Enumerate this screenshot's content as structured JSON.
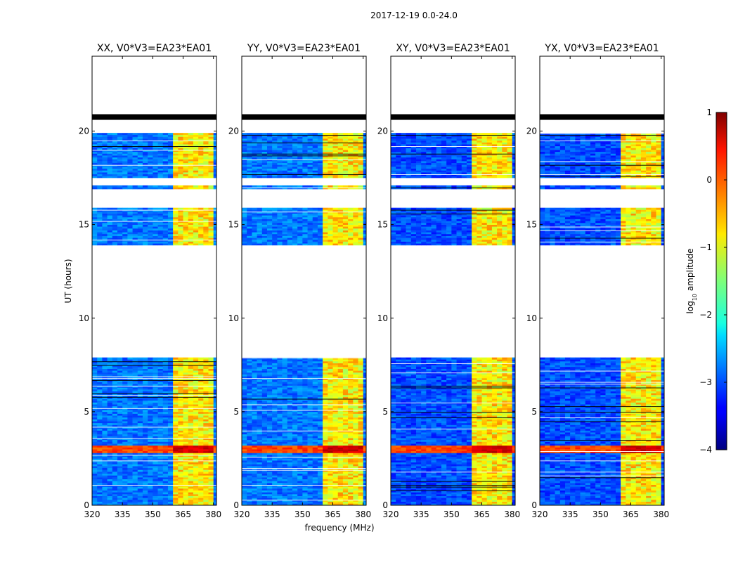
{
  "figure": {
    "suptitle": "2017-12-19 0.0-24.0"
  },
  "chart_data": {
    "type": "heatmap",
    "title": "2017-12-19 0.0-24.0",
    "xlabel": "frequency (MHz)",
    "ylabel": "UT (hours)",
    "xlim": [
      320,
      381.5
    ],
    "ylim": [
      0,
      24
    ],
    "xticks": [
      320,
      335,
      350,
      365,
      380
    ],
    "xtick_labels": [
      "320",
      "335",
      "350",
      "365",
      "380"
    ],
    "yticks": [
      0,
      5,
      10,
      15,
      20
    ],
    "ytick_labels": [
      "0",
      "5",
      "10",
      "15",
      "20"
    ],
    "panels": [
      {
        "title": "XX, V0*V3=EA23*EA01",
        "base_level": -2.8
      },
      {
        "title": "YY, V0*V3=EA23*EA01",
        "base_level": -2.8
      },
      {
        "title": "XY, V0*V3=EA23*EA01",
        "base_level": -3.0
      },
      {
        "title": "YX, V0*V3=EA23*EA01",
        "base_level": -3.0
      }
    ],
    "data_spans_ut": [
      [
        0,
        7.9
      ],
      [
        13.9,
        15.9
      ],
      [
        16.9,
        17.1
      ],
      [
        17.5,
        19.9
      ]
    ],
    "flagged_ut": [
      [
        20.6,
        20.9
      ]
    ],
    "strong_rfi_ut": [
      2.8,
      3.2
    ],
    "rfi_band_mhz": [
      360.5,
      380
    ],
    "rfi_band_level": -0.8,
    "colorbar": {
      "label": "log",
      "label_sub": "10",
      "label_suffix": " amplitude",
      "min": -4,
      "max": 1,
      "ticks": [
        1,
        0,
        -1,
        -2,
        -3,
        -4
      ],
      "tick_labels": [
        "1",
        "0",
        "−1",
        "−2",
        "−3",
        "−4"
      ],
      "colormap": "jet"
    }
  }
}
